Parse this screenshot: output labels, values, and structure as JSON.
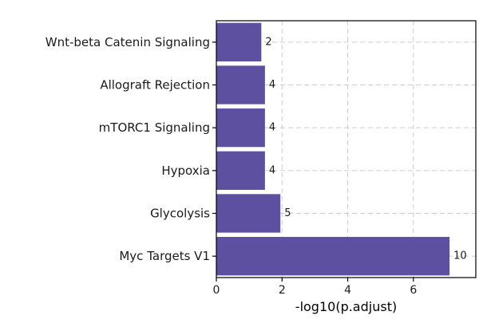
{
  "chart_data": {
    "type": "bar",
    "orientation": "horizontal",
    "categories": [
      "Wnt-beta Catenin Signaling",
      "Allograft Rejection",
      "mTORC1 Signaling",
      "Hypoxia",
      "Glycolysis",
      "Myc Targets V1"
    ],
    "values": [
      1.37,
      1.48,
      1.48,
      1.48,
      1.95,
      7.1
    ],
    "data_labels": [
      "2",
      "4",
      "4",
      "4",
      "5",
      "10"
    ],
    "title": "",
    "xlabel": "-log10(p.adjust)",
    "ylabel": "",
    "xlim": [
      0,
      7.9
    ],
    "xticks": [
      0,
      2,
      4,
      6
    ],
    "xtick_labels": [
      "0",
      "2",
      "4",
      "6"
    ],
    "grid": true,
    "legend": "none",
    "bar_color": "#5e50a1",
    "grid_color": "#cccccc"
  }
}
